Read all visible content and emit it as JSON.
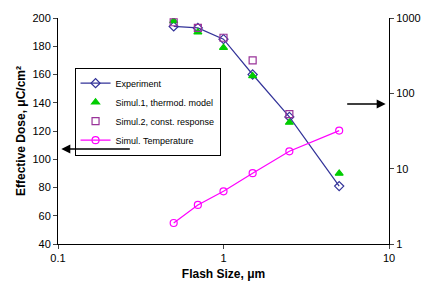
{
  "chart_data": {
    "type": "scatter",
    "x_label": "Flash Size, μm",
    "y_label": "Effective Dose, μC/cm²",
    "x": [
      0.5,
      0.7,
      1,
      1.5,
      2.5,
      5
    ],
    "series": [
      {
        "name": "Experiment",
        "color": "#333399",
        "marker": "diamond-open",
        "line_style": "solid",
        "values": [
          194,
          193,
          185,
          160,
          130,
          81
        ]
      },
      {
        "name": "Simul.1, thermod. model",
        "color": "#00cc00",
        "marker": "triangle-up",
        "line_style": "none",
        "values": [
          198,
          190,
          179,
          159,
          126,
          90
        ]
      },
      {
        "name": "Simul.2, const. response",
        "color": "#993399",
        "marker": "square-open",
        "line_style": "none",
        "values": [
          197,
          193,
          186,
          170,
          132,
          null
        ]
      },
      {
        "name": "Simul. Temperature",
        "color": "#ff00ff",
        "marker": "circle-open",
        "line_style": "solid",
        "axis": "y2",
        "values": [
          1.9,
          3.3,
          5.0,
          8.7,
          17,
          32
        ]
      }
    ],
    "log": "x",
    "xlim": [
      0.1,
      10
    ],
    "xticks": [
      0.1,
      1,
      10
    ],
    "ylim": [
      40,
      200
    ],
    "yticks": [
      40,
      60,
      80,
      100,
      120,
      140,
      160,
      180,
      200
    ],
    "y2lim": [
      1,
      1000
    ],
    "y2ticks": [
      1,
      10,
      100,
      1000
    ],
    "grid": false,
    "legend": "left"
  }
}
